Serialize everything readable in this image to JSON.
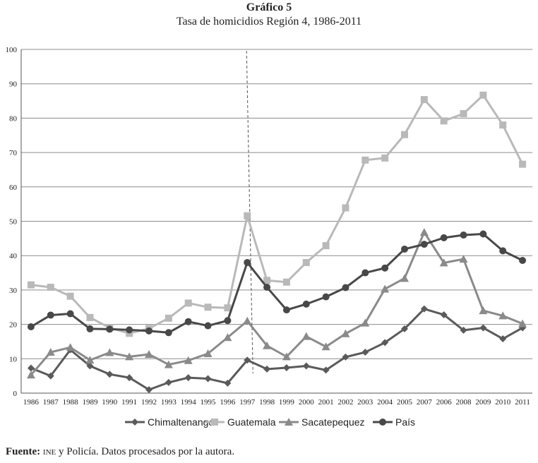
{
  "header": {
    "title": "Gráfico 5",
    "subtitle": "Tasa de homicidios Región 4, 1986-2011"
  },
  "chart_data": {
    "type": "line",
    "title": "Gráfico 5",
    "subtitle": "Tasa de homicidios Región 4, 1986-2011",
    "xlabel": "",
    "ylabel": "",
    "ylim": [
      0,
      100
    ],
    "yticks": [
      0,
      10,
      20,
      30,
      40,
      50,
      60,
      70,
      80,
      90,
      100
    ],
    "grid": true,
    "legend_position": "bottom",
    "categories": [
      "1986",
      "1987",
      "1988",
      "1989",
      "1990",
      "1991",
      "1992",
      "1993",
      "1994",
      "1995",
      "1996",
      "1997",
      "1998",
      "1999",
      "2000",
      "2001",
      "2002",
      "2003",
      "2004",
      "2005",
      "2007",
      "2006",
      "2008",
      "2009",
      "2010",
      "2011"
    ],
    "annotation": {
      "type": "vertical-dashed-line",
      "at": "1997"
    },
    "series": [
      {
        "name": "Chimaltenango",
        "marker": "diamond",
        "color": "#5a5a5a",
        "values": [
          7.3,
          5.0,
          12.6,
          7.9,
          5.5,
          4.5,
          1.0,
          3.1,
          4.5,
          4.2,
          2.9,
          9.6,
          7.0,
          7.4,
          7.9,
          6.7,
          10.5,
          11.9,
          14.7,
          18.7,
          24.5,
          22.8,
          18.3,
          19.0,
          15.8,
          19.0
        ]
      },
      {
        "name": "Guatemala",
        "marker": "square",
        "color": "#b9b9b9",
        "values": [
          31.5,
          30.8,
          28.2,
          22.0,
          19.0,
          17.4,
          18.8,
          21.8,
          26.2,
          25.0,
          24.8,
          51.6,
          32.8,
          32.3,
          38.0,
          42.9,
          53.9,
          67.8,
          68.4,
          75.2,
          85.4,
          79.2,
          81.3,
          86.7,
          78.0,
          66.6
        ]
      },
      {
        "name": "Sacatepequez",
        "marker": "triangle",
        "color": "#8a8a8a",
        "values": [
          5.3,
          11.9,
          13.3,
          9.6,
          11.8,
          10.6,
          11.3,
          8.3,
          9.5,
          11.5,
          16.2,
          21.0,
          13.8,
          10.6,
          16.5,
          13.5,
          17.3,
          20.4,
          30.3,
          33.4,
          46.8,
          37.9,
          39.0,
          24.0,
          22.5,
          20.2
        ]
      },
      {
        "name": "País",
        "marker": "circle",
        "color": "#484848",
        "values": [
          19.3,
          22.7,
          23.1,
          18.7,
          18.6,
          18.4,
          18.1,
          17.6,
          20.8,
          19.6,
          21.1,
          38.0,
          30.8,
          24.2,
          25.9,
          28.0,
          30.7,
          35.0,
          36.4,
          41.9,
          43.3,
          45.2,
          46.0,
          46.3,
          41.4,
          38.6
        ]
      }
    ]
  },
  "footer": {
    "source_label": "Fuente:",
    "source_abbrev": "ine",
    "source_text": " y Policía. Datos procesados por la autora."
  }
}
